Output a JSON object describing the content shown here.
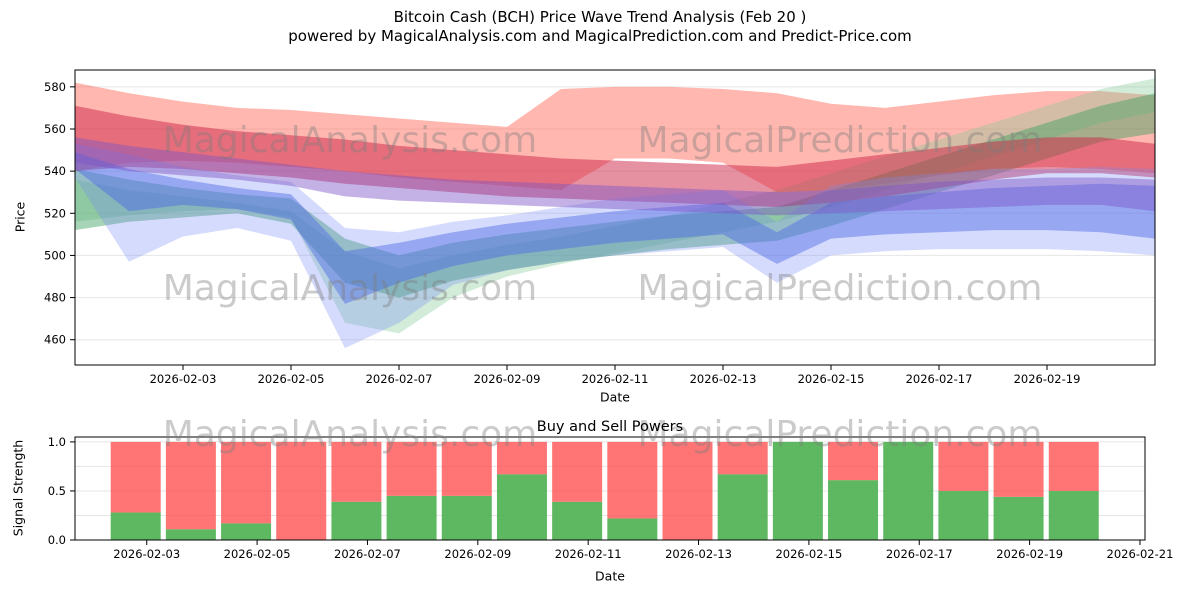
{
  "title": {
    "line1": "Bitcoin Cash (BCH) Price Wave Trend Analysis (Feb 20 )",
    "line2": "powered by MagicalAnalysis.com and MagicalPrediction.com and Predict-Price.com"
  },
  "watermarks": [
    "MagicalAnalysis.com",
    "MagicalPrediction.com"
  ],
  "colors": {
    "buy": "rgba(76,175,80,0.9)",
    "sell": "rgba(255,82,82,0.8)",
    "grid": "#e6e6e6",
    "axis": "#000000",
    "watermark": "rgba(125,125,125,0.4)"
  },
  "chart_data": [
    {
      "type": "area",
      "title": "",
      "xlabel": "Date",
      "ylabel": "Price",
      "ylim": [
        448,
        588
      ],
      "yticks": [
        460,
        480,
        500,
        520,
        540,
        560,
        580
      ],
      "xticks": [
        "2026-02-03",
        "2026-02-05",
        "2026-02-07",
        "2026-02-09",
        "2026-02-11",
        "2026-02-13",
        "2026-02-15",
        "2026-02-17",
        "2026-02-19"
      ],
      "x_dates": [
        "2026-02-01",
        "2026-02-02",
        "2026-02-03",
        "2026-02-04",
        "2026-02-05",
        "2026-02-06",
        "2026-02-07",
        "2026-02-08",
        "2026-02-09",
        "2026-02-10",
        "2026-02-11",
        "2026-02-12",
        "2026-02-13",
        "2026-02-14",
        "2026-02-15",
        "2026-02-16",
        "2026-02-17",
        "2026-02-18",
        "2026-02-19",
        "2026-02-20",
        "2026-02-21"
      ],
      "bands": [
        {
          "name": "sell-zone-outer",
          "color": "rgba(255,95,80,0.45)",
          "upper": [
            582,
            577,
            573,
            570,
            569,
            567,
            565,
            563,
            561,
            579,
            580,
            580,
            579,
            577,
            572,
            570,
            573,
            576,
            578,
            578,
            576
          ],
          "lower": [
            540,
            544,
            545,
            544,
            542,
            540,
            537,
            535,
            533,
            531,
            546,
            546,
            544,
            530,
            531,
            534,
            538,
            541,
            542,
            541,
            539
          ]
        },
        {
          "name": "buy-zone-light",
          "color": "rgba(130,200,150,0.35)",
          "upper": [
            536,
            531,
            528,
            525,
            521,
            502,
            494,
            500,
            505,
            509,
            514,
            519,
            525,
            531,
            539,
            547,
            555,
            563,
            571,
            579,
            584
          ],
          "lower": [
            516,
            519,
            521,
            522,
            518,
            468,
            463,
            480,
            490,
            496,
            501,
            506,
            511,
            516,
            523,
            531,
            539,
            547,
            555,
            563,
            568
          ]
        },
        {
          "name": "buy-zone",
          "color": "rgba(60,160,95,0.45)",
          "upper": [
            541,
            536,
            532,
            529,
            527,
            508,
            500,
            506,
            510,
            513,
            516,
            519,
            521,
            523,
            531,
            539,
            547,
            555,
            563,
            571,
            577
          ],
          "lower": [
            512,
            516,
            518,
            520,
            515,
            487,
            480,
            488,
            493,
            497,
            500,
            503,
            505,
            507,
            514,
            522,
            530,
            538,
            546,
            554,
            558
          ]
        },
        {
          "name": "sell-zone-core",
          "color": "rgba(205,35,70,0.5)",
          "upper": [
            571,
            566,
            562,
            559,
            557,
            555,
            552,
            550,
            548,
            546,
            545,
            544,
            543,
            542,
            545,
            548,
            551,
            554,
            556,
            556,
            553
          ],
          "lower": [
            540,
            542,
            541,
            539,
            537,
            534,
            532,
            530,
            528,
            527,
            526,
            525,
            524,
            523,
            525,
            528,
            532,
            536,
            539,
            539,
            537
          ]
        },
        {
          "name": "momentum-band-light",
          "color": "rgba(115,135,245,0.3)",
          "upper": [
            553,
            548,
            542,
            538,
            535,
            513,
            511,
            516,
            519,
            523,
            527,
            529,
            531,
            516,
            533,
            537,
            539,
            541,
            541,
            542,
            541
          ],
          "lower": [
            537,
            497,
            509,
            513,
            507,
            456,
            468,
            486,
            493,
            497,
            500,
            502,
            504,
            487,
            500,
            502,
            503,
            503,
            503,
            502,
            500
          ]
        },
        {
          "name": "momentum-band",
          "color": "rgba(75,105,230,0.45)",
          "upper": [
            549,
            541,
            536,
            532,
            529,
            502,
            506,
            511,
            515,
            518,
            521,
            523,
            525,
            511,
            525,
            528,
            530,
            532,
            533,
            534,
            533
          ],
          "lower": [
            541,
            521,
            524,
            522,
            517,
            477,
            487,
            495,
            500,
            503,
            506,
            508,
            510,
            496,
            508,
            510,
            511,
            512,
            512,
            511,
            508
          ]
        },
        {
          "name": "trend-band-purple",
          "color": "rgba(125,85,200,0.45)",
          "upper": [
            556,
            552,
            549,
            546,
            543,
            540,
            538,
            536,
            535,
            534,
            533,
            532,
            531,
            530,
            531,
            533,
            535,
            536,
            537,
            537,
            536
          ],
          "lower": [
            544,
            540,
            538,
            536,
            533,
            528,
            526,
            525,
            524,
            523,
            522,
            521,
            520,
            519,
            520,
            521,
            522,
            523,
            524,
            524,
            521
          ]
        }
      ]
    },
    {
      "type": "bar",
      "stacked": true,
      "title": "Buy and Sell Powers",
      "xlabel": "Date",
      "ylabel": "Signal Strength",
      "ylim": [
        0,
        1.05
      ],
      "yticks": [
        0,
        0.5,
        1
      ],
      "xticks": [
        "2026-02-03",
        "2026-02-05",
        "2026-02-07",
        "2026-02-09",
        "2026-02-11",
        "2026-02-13",
        "2026-02-15",
        "2026-02-17",
        "2026-02-19",
        "2026-02-21"
      ],
      "categories": [
        "2026-02-03",
        "2026-02-04",
        "2026-02-05",
        "2026-02-06",
        "2026-02-07",
        "2026-02-08",
        "2026-02-09",
        "2026-02-10",
        "2026-02-11",
        "2026-02-12",
        "2026-02-13",
        "2026-02-14",
        "2026-02-15",
        "2026-02-16",
        "2026-02-17",
        "2026-02-18",
        "2026-02-19",
        "2026-02-20"
      ],
      "series": [
        {
          "name": "Buy",
          "values": [
            0.28,
            0.11,
            0.17,
            0.0,
            0.39,
            0.45,
            0.45,
            0.67,
            0.39,
            0.22,
            0.0,
            0.67,
            1.0,
            0.61,
            1.0,
            0.5,
            0.44,
            0.5
          ]
        },
        {
          "name": "Sell",
          "values": [
            0.72,
            0.89,
            0.83,
            1.0,
            0.61,
            0.55,
            0.55,
            0.33,
            0.61,
            0.78,
            1.0,
            0.33,
            0.0,
            0.39,
            0.0,
            0.5,
            0.56,
            0.5
          ]
        }
      ]
    }
  ]
}
